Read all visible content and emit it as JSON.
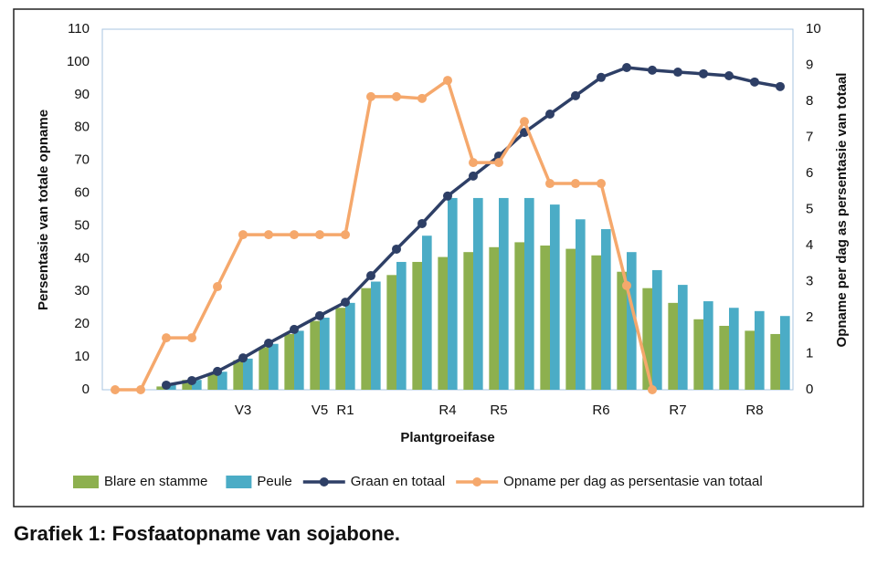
{
  "chart_data": {
    "type": "bar_line",
    "caption": "Grafiek 1: Fosfaatopname van sojabone.",
    "xlabel": "Plantgroeifase",
    "ylabel": "Persentasie van totale opname",
    "y2label": "Opname per dag as persentasie van totaal",
    "categories": [
      null,
      null,
      null,
      null,
      null,
      "V3",
      null,
      null,
      "V5",
      "R1",
      null,
      null,
      null,
      "R4",
      null,
      "R5",
      null,
      null,
      null,
      "R6",
      null,
      null,
      "R7",
      null,
      null,
      "R8",
      null
    ],
    "series": [
      {
        "name": "Blare en stamme",
        "kind": "bar",
        "color": "#8db04f",
        "values": [
          0,
          0,
          1,
          3,
          5,
          9,
          13,
          17,
          21,
          25,
          31,
          35,
          39,
          40.5,
          42,
          43.5,
          45,
          44,
          43,
          41,
          36,
          31,
          26.5,
          21.5,
          19.5,
          18,
          17
        ]
      },
      {
        "name": "Peule",
        "kind": "bar",
        "color": "#4bacc6",
        "values": [
          0,
          0,
          1.5,
          3,
          5.5,
          9.5,
          14,
          18,
          22,
          26.5,
          33,
          39,
          47,
          58.5,
          58.5,
          58.5,
          58.5,
          56.5,
          52,
          49,
          42,
          36.5,
          32,
          27,
          25,
          24,
          22.5
        ]
      },
      {
        "name": "Graan en totaal",
        "kind": "line",
        "color": "#2e3f66",
        "values": [
          null,
          null,
          1.4,
          2.8,
          5.6,
          9.7,
          14.2,
          18.4,
          22.6,
          26.7,
          34.8,
          42.9,
          50.7,
          59.1,
          65.2,
          71.3,
          78.5,
          84.1,
          89.7,
          95.3,
          98.3,
          97.5,
          96.9,
          96.4,
          95.8,
          93.9,
          92.5
        ]
      },
      {
        "name": "Opname per dag as persentasie van totaal",
        "kind": "line",
        "axis": "y2",
        "color": "#f5a86c",
        "values": [
          0,
          0,
          1.44,
          1.44,
          2.86,
          4.3,
          4.3,
          4.3,
          4.3,
          4.3,
          8.13,
          8.13,
          8.08,
          8.58,
          6.3,
          6.3,
          7.44,
          5.72,
          5.72,
          5.72,
          2.89,
          0,
          null,
          null,
          null,
          null,
          null
        ]
      }
    ],
    "ylim": [
      0,
      110
    ],
    "yticks": [
      0,
      10,
      20,
      30,
      40,
      50,
      60,
      70,
      80,
      90,
      100,
      110
    ],
    "y2lim": [
      0,
      10
    ],
    "y2ticks": [
      0,
      1,
      2,
      3,
      4,
      5,
      6,
      7,
      8,
      9,
      10
    ],
    "legend": "bottom",
    "grid": false
  }
}
